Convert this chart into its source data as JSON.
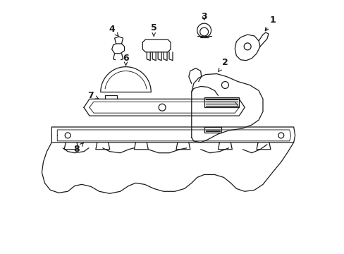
{
  "background_color": "#ffffff",
  "line_color": "#1a1a1a",
  "line_width": 0.9,
  "figsize": [
    4.89,
    3.6
  ],
  "dpi": 100
}
